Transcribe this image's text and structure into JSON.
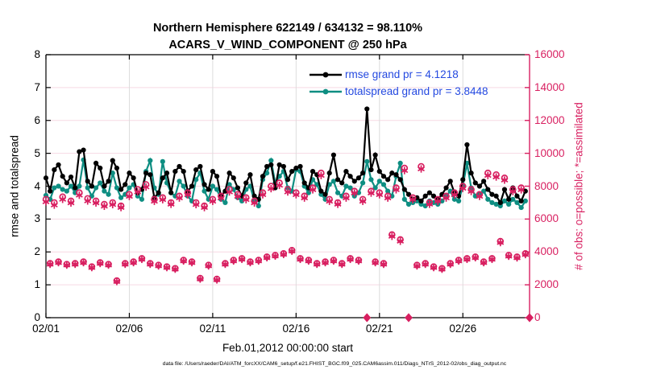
{
  "title": {
    "line1": "Northern Hemisphere 622149 / 634132 = 98.110%",
    "line2": "ACARS_V_WIND_COMPONENT @ 250 hPa"
  },
  "legend": [
    {
      "label": "rmse grand pr = 4.1218",
      "color": "#000000"
    },
    {
      "label": "totalspread grand pr = 3.8448",
      "color": "#0e8e82"
    }
  ],
  "footer": "data file: /Users/raeder/DAI/ATM_forcXX/CAM6_setup/f.e21.FHIST_BGC.f09_025.CAM6assim.011/Diags_NTrS_2012-02/obs_diag_output.nc",
  "colors": {
    "obs": "#d81f60",
    "rmse": "#000000",
    "totalspread": "#0e8e82",
    "legend_text": "#2449e0",
    "grid_h": "#f7d9e4",
    "grid_v": "#dcdcdc",
    "axis": "#000000"
  },
  "axes": {
    "left": {
      "label": "rmse and totalspread",
      "range": [
        0,
        8
      ],
      "ticks": [
        0,
        1,
        2,
        3,
        4,
        5,
        6,
        7,
        8
      ]
    },
    "right": {
      "label": "# of obs: o=possible; *=assimilated",
      "range": [
        0,
        16000
      ],
      "ticks": [
        0,
        2000,
        4000,
        6000,
        8000,
        10000,
        12000,
        14000,
        16000
      ]
    },
    "x": {
      "label": "Feb.01,2012 00:00:00 start",
      "range_days": [
        0,
        29
      ],
      "tick_days": [
        0,
        5,
        10,
        15,
        20,
        25
      ],
      "tick_labels": [
        "02/01",
        "02/06",
        "02/11",
        "02/16",
        "02/21",
        "02/26"
      ]
    }
  },
  "chart_data": {
    "type": "line",
    "title": "Northern Hemisphere 622149 / 634132 = 98.110% — ACARS_V_WIND_COMPONENT @ 250 hPa",
    "xlabel": "Feb.01,2012 00:00:00 start",
    "ylabel_left": "rmse and totalspread",
    "ylabel_right": "# of obs: o=possible; *=assimilated",
    "ylim_left": [
      0,
      8
    ],
    "ylim_right": [
      0,
      16000
    ],
    "grid": true,
    "legend_position": "top-center-inside",
    "time_start_day": 0,
    "time_step_days": 0.25,
    "series": [
      {
        "name": "rmse",
        "axis": "left",
        "color": "#000000",
        "marker": "dot",
        "grand_pr": 4.1218,
        "values": [
          4.25,
          3.85,
          4.5,
          4.65,
          4.3,
          4.1,
          4.28,
          3.95,
          5.05,
          5.1,
          4.15,
          4.0,
          4.7,
          4.55,
          4.0,
          4.15,
          4.78,
          4.55,
          3.9,
          4.05,
          4.4,
          4.25,
          3.8,
          3.9,
          4.4,
          4.35,
          3.65,
          3.8,
          4.25,
          4.4,
          3.8,
          4.45,
          4.6,
          4.45,
          3.85,
          4.0,
          4.5,
          4.6,
          4.05,
          3.9,
          4.45,
          4.3,
          3.7,
          3.85,
          4.4,
          4.25,
          3.95,
          3.7,
          4.1,
          4.35,
          3.7,
          3.6,
          4.3,
          4.6,
          4.65,
          3.95,
          4.65,
          4.6,
          4.2,
          4.45,
          4.55,
          4.6,
          4.1,
          3.95,
          4.45,
          4.35,
          3.85,
          3.75,
          4.4,
          4.95,
          4.2,
          4.1,
          4.45,
          4.3,
          4.15,
          4.25,
          4.4,
          6.35,
          4.5,
          4.95,
          4.45,
          4.3,
          4.2,
          4.4,
          4.35,
          4.2,
          3.9,
          3.75,
          3.6,
          3.65,
          3.55,
          3.7,
          3.8,
          3.7,
          3.6,
          3.75,
          3.95,
          4.15,
          3.8,
          3.7,
          4.2,
          5.26,
          4.4,
          4.1,
          4.0,
          4.15,
          3.9,
          3.75,
          3.7,
          3.5,
          3.9,
          3.6,
          3.95,
          3.7,
          3.55,
          3.85,
          null
        ]
      },
      {
        "name": "totalspread",
        "axis": "left",
        "color": "#0e8e82",
        "marker": "dot",
        "grand_pr": 3.8448,
        "values": [
          3.72,
          3.6,
          3.95,
          4.0,
          3.9,
          3.85,
          4.0,
          3.8,
          4.0,
          4.8,
          3.95,
          3.7,
          3.95,
          4.1,
          3.85,
          3.75,
          4.4,
          3.95,
          3.65,
          3.75,
          3.95,
          4.05,
          3.7,
          3.6,
          4.45,
          4.78,
          3.95,
          3.75,
          4.75,
          4.1,
          3.8,
          3.7,
          4.15,
          4.0,
          3.7,
          3.55,
          4.2,
          4.4,
          3.85,
          3.6,
          4.0,
          3.9,
          3.6,
          3.5,
          4.05,
          3.9,
          3.65,
          3.55,
          3.9,
          4.0,
          3.55,
          3.4,
          4.2,
          4.4,
          4.78,
          4.1,
          4.3,
          4.45,
          3.95,
          3.85,
          4.5,
          4.45,
          4.0,
          3.8,
          4.2,
          4.05,
          3.75,
          3.6,
          4.05,
          4.15,
          3.8,
          3.7,
          4.0,
          3.95,
          3.7,
          3.8,
          4.1,
          4.75,
          4.2,
          3.95,
          4.15,
          4.05,
          3.85,
          3.7,
          4.3,
          4.7,
          3.6,
          3.45,
          3.5,
          3.55,
          3.45,
          3.4,
          3.55,
          3.5,
          3.45,
          3.55,
          3.7,
          3.85,
          3.6,
          3.55,
          4.0,
          4.7,
          3.95,
          3.7,
          3.75,
          3.85,
          3.6,
          3.5,
          3.45,
          3.4,
          3.55,
          3.45,
          3.6,
          3.5,
          3.35,
          3.55,
          null
        ]
      },
      {
        "name": "obs_possible",
        "axis": "right",
        "color": "#d81f60",
        "marker": "circle",
        "values": [
          7200,
          3300,
          7000,
          3400,
          7350,
          3250,
          7100,
          3300,
          7600,
          3400,
          7250,
          3100,
          7100,
          3350,
          6900,
          3250,
          7000,
          2250,
          6800,
          3300,
          7500,
          3400,
          7800,
          3600,
          8100,
          3300,
          7200,
          3200,
          7300,
          3100,
          7000,
          3000,
          7400,
          3500,
          7600,
          3400,
          7000,
          2400,
          6800,
          3200,
          7200,
          2350,
          7400,
          3300,
          7800,
          3500,
          7500,
          3600,
          7300,
          3400,
          7100,
          3500,
          7600,
          3700,
          8000,
          3800,
          8200,
          3900,
          7800,
          4100,
          7600,
          3600,
          7400,
          3500,
          7900,
          3300,
          8800,
          3400,
          7200,
          3500,
          7000,
          3300,
          7400,
          3600,
          7700,
          3500,
          7200,
          0,
          7700,
          3400,
          7600,
          3300,
          7400,
          5050,
          7900,
          4750,
          9100,
          0,
          7300,
          3200,
          9200,
          3300,
          7000,
          3100,
          7200,
          3000,
          7400,
          3300,
          7600,
          3500,
          8000,
          3600,
          7800,
          3700,
          7500,
          3400,
          8800,
          3600,
          8700,
          4650,
          8500,
          3800,
          7800,
          3700,
          7900,
          3900,
          0
        ]
      },
      {
        "name": "obs_assimilated",
        "axis": "right",
        "color": "#d81f60",
        "marker": "asterisk",
        "values": [
          7050,
          3250,
          6850,
          3350,
          7200,
          3200,
          6980,
          3250,
          7450,
          3350,
          7100,
          3050,
          6980,
          3300,
          6780,
          3200,
          6880,
          2200,
          6700,
          3250,
          7380,
          3350,
          7650,
          3550,
          7950,
          3250,
          7080,
          3150,
          7180,
          3050,
          6900,
          2950,
          7280,
          3450,
          7480,
          3350,
          6880,
          2350,
          6700,
          3150,
          7080,
          2300,
          7280,
          3250,
          7650,
          3450,
          7380,
          3550,
          7180,
          3350,
          6980,
          3450,
          7480,
          3650,
          7850,
          3750,
          8050,
          3850,
          7650,
          4050,
          7480,
          3550,
          7280,
          3450,
          7780,
          3250,
          8650,
          3350,
          7080,
          3450,
          6900,
          3250,
          7280,
          3550,
          7580,
          3450,
          7080,
          0,
          7580,
          3350,
          7480,
          3250,
          7280,
          4950,
          7780,
          4650,
          8950,
          0,
          7180,
          3150,
          9050,
          3250,
          6900,
          3050,
          7080,
          2950,
          7280,
          3250,
          7480,
          3450,
          7870,
          3550,
          7680,
          3650,
          7380,
          3350,
          8650,
          3550,
          8560,
          4570,
          8370,
          3740,
          7680,
          3640,
          7780,
          3840,
          0
        ]
      }
    ]
  }
}
